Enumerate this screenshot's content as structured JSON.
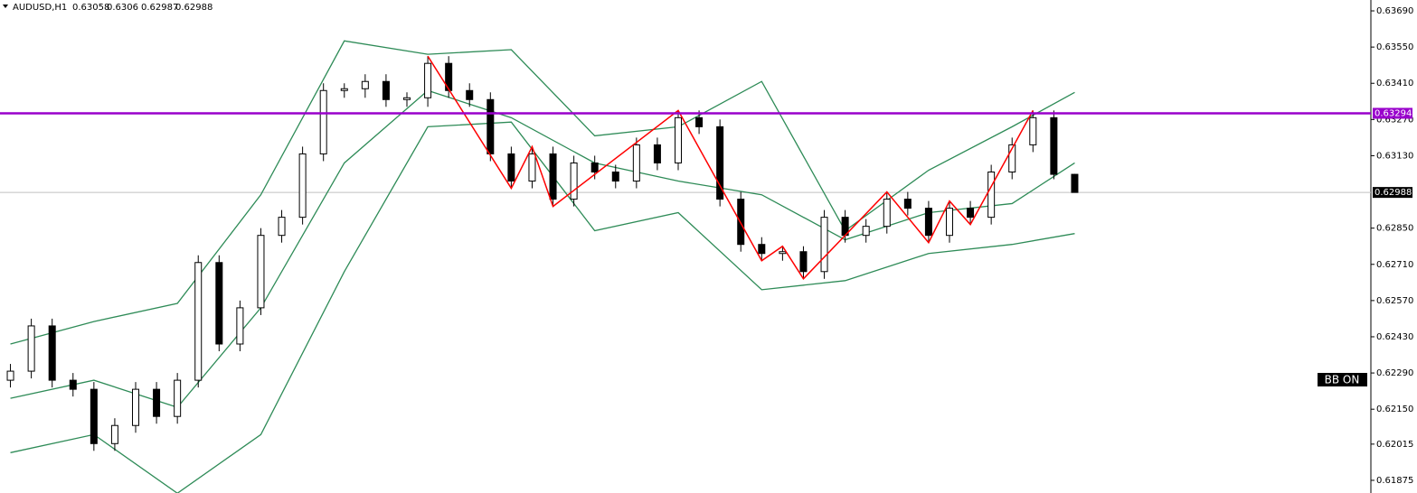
{
  "chart_data": {
    "type": "candlestick",
    "title": "AUDUSD,H1",
    "ylim": [
      0.61826,
      0.63732
    ],
    "yticks": [
      {
        "value": 0.6369,
        "label": "0.63690"
      },
      {
        "value": 0.6355,
        "label": "0.63550"
      },
      {
        "value": 0.6341,
        "label": "0.63410"
      },
      {
        "value": 0.6327,
        "label": "0.63270"
      },
      {
        "value": 0.6313,
        "label": "0.63130"
      },
      {
        "value": 0.6285,
        "label": "0.62850"
      },
      {
        "value": 0.6271,
        "label": "0.62710"
      },
      {
        "value": 0.6257,
        "label": "0.62570"
      },
      {
        "value": 0.6243,
        "label": "0.62430"
      },
      {
        "value": 0.6229,
        "label": "0.62290"
      },
      {
        "value": 0.6215,
        "label": "0.62150"
      },
      0.62015,
      0.61875
    ],
    "ohlc": [
      [
        0.62262,
        0.62325,
        0.62234,
        0.62297
      ],
      [
        0.62297,
        0.625,
        0.62269,
        0.62472
      ],
      [
        0.62472,
        0.625,
        0.62234,
        0.62262
      ],
      [
        0.62262,
        0.6229,
        0.62199,
        0.62227
      ],
      [
        0.62227,
        0.62255,
        0.61989,
        0.62017
      ],
      [
        0.62017,
        0.62115,
        0.61989,
        0.62087
      ],
      [
        0.62087,
        0.62255,
        0.62059,
        0.62227
      ],
      [
        0.62227,
        0.62255,
        0.62094,
        0.62122
      ],
      [
        0.62122,
        0.6229,
        0.62094,
        0.62262
      ],
      [
        0.62262,
        0.62745,
        0.62234,
        0.62717
      ],
      [
        0.62717,
        0.62745,
        0.62374,
        0.62402
      ],
      [
        0.62402,
        0.6257,
        0.62374,
        0.62542
      ],
      [
        0.62542,
        0.6285,
        0.62514,
        0.62822
      ],
      [
        0.62822,
        0.6292,
        0.62794,
        0.62892
      ],
      [
        0.62892,
        0.63165,
        0.62864,
        0.63137
      ],
      [
        0.63137,
        0.6341,
        0.63109,
        0.63382
      ],
      [
        0.63382,
        0.6341,
        0.63354,
        0.63389
      ],
      [
        0.63389,
        0.63445,
        0.63354,
        0.63417
      ],
      [
        0.63417,
        0.63445,
        0.63319,
        0.63347
      ],
      [
        0.63347,
        0.63375,
        0.63319,
        0.63354
      ],
      [
        0.63354,
        0.63515,
        0.63319,
        0.63487
      ],
      [
        0.63487,
        0.63515,
        0.63354,
        0.63382
      ],
      [
        0.63382,
        0.6341,
        0.63319,
        0.63347
      ],
      [
        0.63347,
        0.63375,
        0.63109,
        0.63137
      ],
      [
        0.63137,
        0.63165,
        0.63004,
        0.63032
      ],
      [
        0.63032,
        0.63165,
        0.63004,
        0.63137
      ],
      [
        0.63137,
        0.63165,
        0.62934,
        0.62962
      ],
      [
        0.62962,
        0.6313,
        0.62934,
        0.63102
      ],
      [
        0.63102,
        0.6313,
        0.63039,
        0.63067
      ],
      [
        0.63067,
        0.63095,
        0.63004,
        0.63032
      ],
      [
        0.63032,
        0.632,
        0.63004,
        0.63172
      ],
      [
        0.63172,
        0.632,
        0.63074,
        0.63102
      ],
      [
        0.63102,
        0.63305,
        0.63074,
        0.63277
      ],
      [
        0.63277,
        0.63305,
        0.63214,
        0.63242
      ],
      [
        0.63242,
        0.6327,
        0.62934,
        0.62962
      ],
      [
        0.62962,
        0.6299,
        0.62759,
        0.62787
      ],
      [
        0.62787,
        0.62815,
        0.62724,
        0.62752
      ],
      [
        0.62752,
        0.6278,
        0.62724,
        0.62759
      ],
      [
        0.62759,
        0.6278,
        0.62654,
        0.62682
      ],
      [
        0.62682,
        0.6292,
        0.62654,
        0.62892
      ],
      [
        0.62892,
        0.6292,
        0.62794,
        0.62822
      ],
      [
        0.62822,
        0.62885,
        0.62794,
        0.62857
      ],
      [
        0.62857,
        0.6299,
        0.62829,
        0.62962
      ],
      [
        0.62962,
        0.6299,
        0.62899,
        0.62927
      ],
      [
        0.62927,
        0.62955,
        0.62794,
        0.62822
      ],
      [
        0.62822,
        0.62955,
        0.62794,
        0.62927
      ],
      [
        0.62927,
        0.62955,
        0.62864,
        0.62892
      ],
      [
        0.62892,
        0.63095,
        0.62864,
        0.63067
      ],
      [
        0.63067,
        0.632,
        0.63039,
        0.63172
      ],
      [
        0.63172,
        0.63305,
        0.63144,
        0.63277
      ],
      [
        0.63277,
        0.63305,
        0.63039,
        0.63058
      ],
      [
        0.63058,
        0.6306,
        0.62987,
        0.62988
      ]
    ],
    "bands": {
      "color": "#2e8b57",
      "x": [
        0,
        4,
        8,
        12,
        16,
        20,
        24,
        28,
        32,
        36,
        40,
        44,
        48,
        51
      ],
      "upper": [
        0.62402,
        0.62489,
        0.62559,
        0.62979,
        0.63574,
        0.63522,
        0.6354,
        0.63207,
        0.63242,
        0.63417,
        0.6284,
        0.63074,
        0.63242,
        0.63375
      ],
      "middle": [
        0.62192,
        0.62262,
        0.62157,
        0.62542,
        0.63102,
        0.63382,
        0.63277,
        0.63102,
        0.63032,
        0.62979,
        0.62805,
        0.6291,
        0.62945,
        0.63102
      ],
      "lower": [
        0.61982,
        0.62052,
        0.61825,
        0.62052,
        0.62682,
        0.63242,
        0.6326,
        0.6284,
        0.6291,
        0.62612,
        0.62647,
        0.62752,
        0.62787,
        0.62829
      ]
    },
    "zigzag": {
      "color": "#ff0000",
      "x": [
        20,
        24,
        25,
        26,
        32,
        36,
        37,
        38,
        42,
        44,
        45,
        46,
        49
      ],
      "values": [
        0.63515,
        0.63004,
        0.63165,
        0.62934,
        0.63305,
        0.62724,
        0.6278,
        0.62654,
        0.6299,
        0.62794,
        0.62955,
        0.62864,
        0.63305
      ]
    },
    "hline": {
      "value": 0.63294,
      "color": "#9900cc"
    },
    "annotation": "BB ON",
    "bull_color": "#ffffff",
    "bear_color": "#000000"
  }
}
